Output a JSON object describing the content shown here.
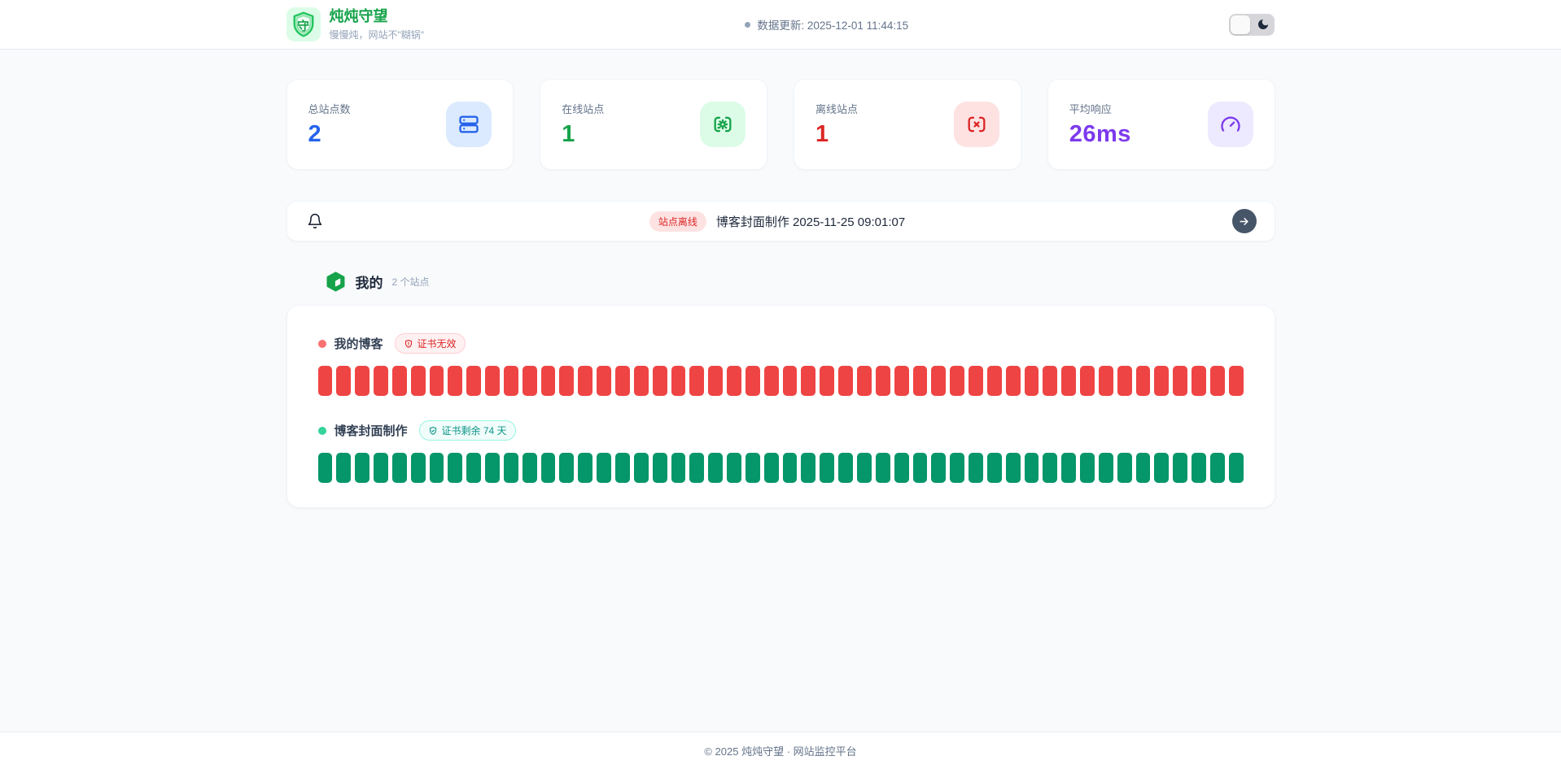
{
  "theme": {
    "brand_green": "#16a34a",
    "page_bg": "#f8fafc"
  },
  "header": {
    "logo_char": "守",
    "title": "炖炖守望",
    "subtitle": "慢慢炖，网站不\"糊锅\"",
    "update_text": "数据更新: 2025-12-01 11:44:15"
  },
  "stats": [
    {
      "label": "总站点数",
      "value": "2",
      "color": "#2563eb",
      "tint": "#dbeafe",
      "icon": "server-icon"
    },
    {
      "label": "在线站点",
      "value": "1",
      "color": "#16a34a",
      "tint": "#dcfce7",
      "icon": "scan-cog-icon"
    },
    {
      "label": "离线站点",
      "value": "1",
      "color": "#dc2626",
      "tint": "#fee2e2",
      "icon": "scan-x-icon"
    },
    {
      "label": "平均响应",
      "value": "26ms",
      "color": "#7c3aed",
      "tint": "#ede9fe",
      "icon": "gauge-icon"
    }
  ],
  "alert": {
    "badge": "站点离线",
    "message": "博客封面制作 2025-11-25 09:01:07"
  },
  "group": {
    "name": "我的",
    "count_label": "2 个站点"
  },
  "sites": [
    {
      "name": "我的博客",
      "status": "offline",
      "dot_color": "#f87171",
      "cert_badge": "证书无效",
      "cert_state": "invalid",
      "bar_count": 50,
      "bar_color": "#ef4444"
    },
    {
      "name": "博客封面制作",
      "status": "online",
      "dot_color": "#34d399",
      "cert_badge": "证书剩余 74 天",
      "cert_state": "valid",
      "bar_count": 50,
      "bar_color": "#059669"
    }
  ],
  "footer": {
    "copyright": "© 2025 炖炖守望 · 网站监控平台"
  }
}
